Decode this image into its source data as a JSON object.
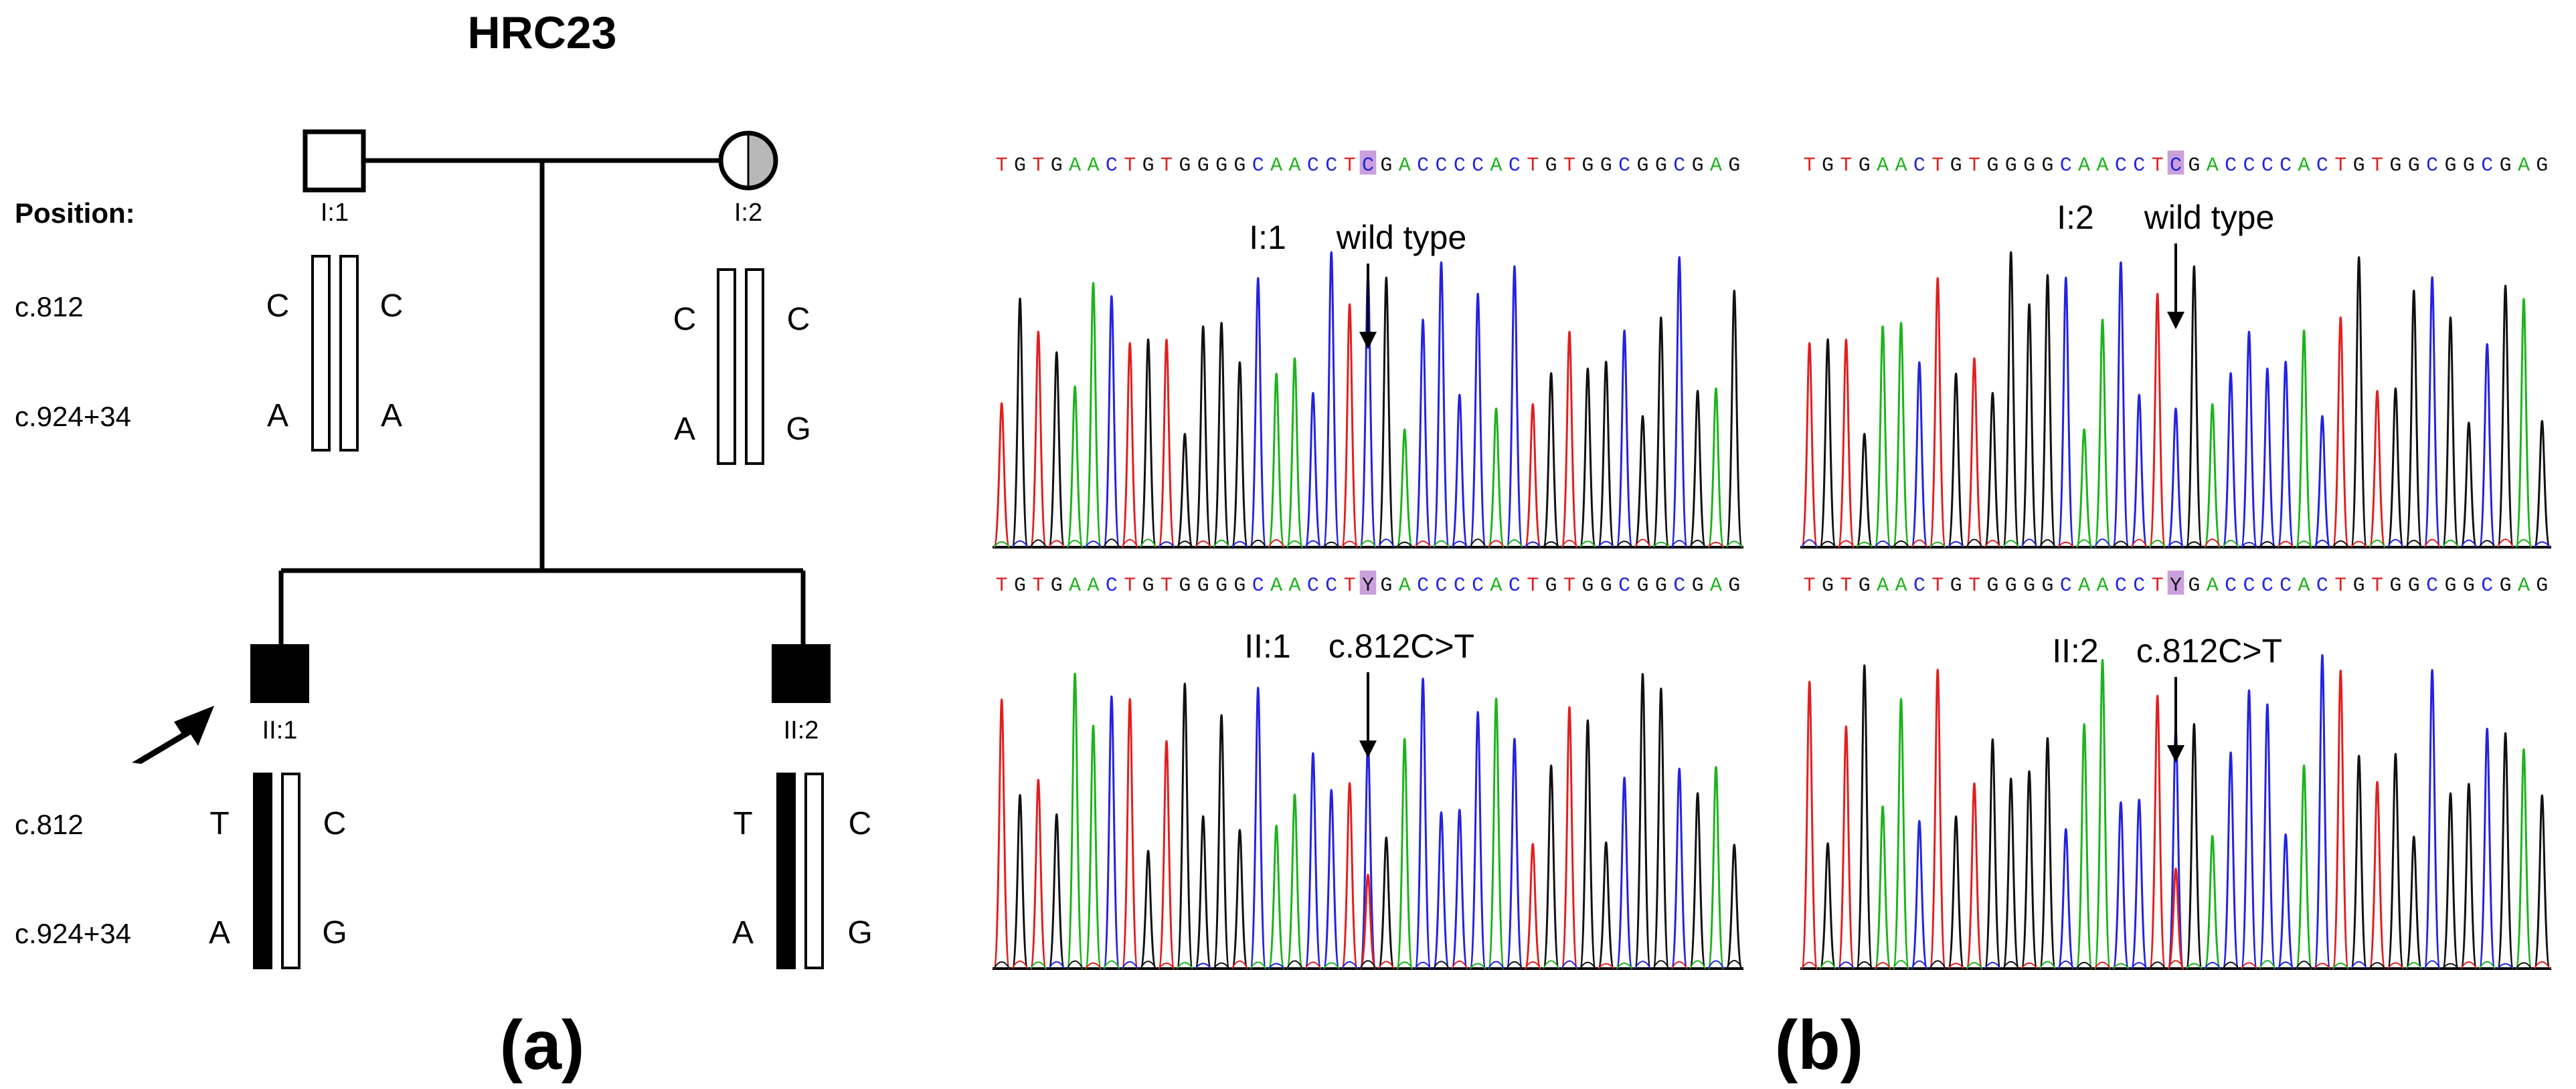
{
  "title": "HRC23",
  "panel_a_label": "(a)",
  "panel_b_label": "(b)",
  "position_heading": "Position:",
  "positions": [
    "c.812",
    "c.924+34"
  ],
  "individuals": [
    {
      "id": "I:1",
      "sex": "male",
      "status": "unaffected",
      "hap_left": [
        "C",
        "A"
      ],
      "hap_right": [
        "C",
        "A"
      ]
    },
    {
      "id": "I:2",
      "sex": "female",
      "status": "carrier",
      "hap_left": [
        "C",
        "A"
      ],
      "hap_right": [
        "C",
        "G"
      ]
    },
    {
      "id": "II:1",
      "sex": "male",
      "status": "affected",
      "proband": true,
      "hap_left": [
        "T",
        "A"
      ],
      "hap_right": [
        "C",
        "G"
      ]
    },
    {
      "id": "II:2",
      "sex": "male",
      "status": "affected",
      "hap_left": [
        "T",
        "A"
      ],
      "hap_right": [
        "C",
        "G"
      ]
    }
  ],
  "colors": {
    "A": "#1db31d",
    "C": "#2323e0",
    "G": "#111111",
    "T": "#e02020",
    "highlight": "#c9a0dc",
    "line": "#000000"
  },
  "chromatograms": [
    {
      "sample": "I:1",
      "annotation": "wild type",
      "sequence": "TGTGAACTGTGGGGCAACCTCGACCCCACTGTGGCGGCGAG",
      "variant_index": 20,
      "variant_code": "C",
      "heterozygous": false
    },
    {
      "sample": "I:2",
      "annotation": "wild type",
      "sequence": "TGTGAACTGTGGGGCAACCTCGACCCCACTGTGGCGGCGAG",
      "variant_index": 20,
      "variant_code": "C",
      "heterozygous": false
    },
    {
      "sample": "II:1",
      "annotation": "c.812C>T",
      "sequence": "TGTGAACTGTGGGGCAACCTYGACCCCACTGTGGCGGCGAG",
      "variant_index": 20,
      "variant_code": "Y",
      "heterozygous": true
    },
    {
      "sample": "II:2",
      "annotation": "c.812C>T",
      "sequence": "TGTGAACTGTGGGGCAACCTYGACCCCACTGTGGCGGCGAG",
      "variant_index": 20,
      "variant_code": "Y",
      "heterozygous": true
    }
  ]
}
